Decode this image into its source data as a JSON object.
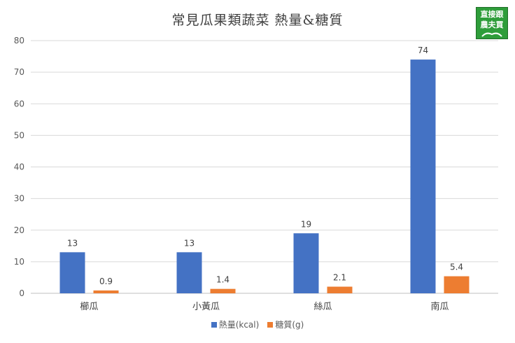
{
  "logo": {
    "line1": "直接跟",
    "line2": "農夫買"
  },
  "chart_data": {
    "type": "bar",
    "title": "常見瓜果類蔬菜 熱量&糖質",
    "categories": [
      "櫛瓜",
      "小黃瓜",
      "絲瓜",
      "南瓜"
    ],
    "series": [
      {
        "name": "熱量(kcal)",
        "values": [
          13,
          13,
          19,
          74
        ],
        "labels": [
          "13",
          "13",
          "19",
          "74"
        ],
        "color": "#4472c4"
      },
      {
        "name": "糖質(g)",
        "values": [
          0.9,
          1.4,
          2.1,
          5.4
        ],
        "labels": [
          "0.9",
          "1.4",
          "2.1",
          "5.4"
        ],
        "color": "#ed7d31"
      }
    ],
    "ylim": [
      0,
      80
    ],
    "yticks": [
      "0",
      "10",
      "20",
      "30",
      "40",
      "50",
      "60",
      "70",
      "80"
    ],
    "grid": true,
    "legend_position": "bottom"
  }
}
